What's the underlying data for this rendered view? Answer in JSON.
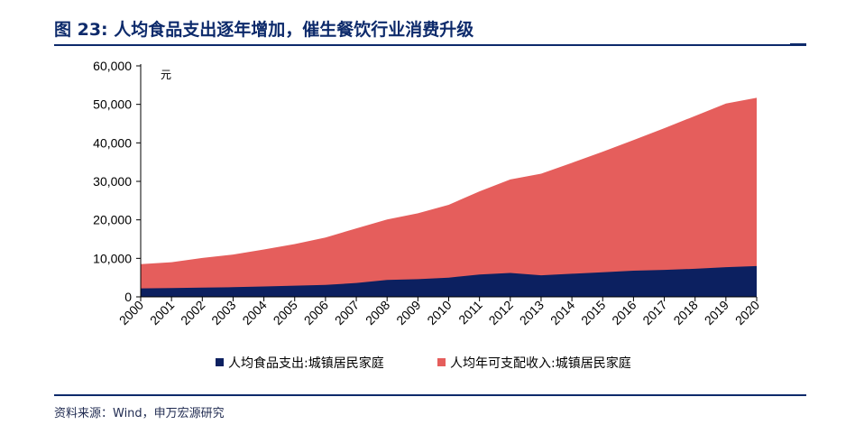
{
  "header": {
    "title": "图 23: 人均食品支出逐年增加，催生餐饮行业消费升级"
  },
  "footer": {
    "source": "资料来源：Wind，申万宏源研究"
  },
  "chart_data": {
    "type": "area",
    "stacked": false,
    "unit_label": "元",
    "categories": [
      "2000",
      "2001",
      "2002",
      "2003",
      "2004",
      "2005",
      "2006",
      "2007",
      "2008",
      "2009",
      "2010",
      "2011",
      "2012",
      "2013",
      "2014",
      "2015",
      "2016",
      "2017",
      "2018",
      "2019",
      "2020"
    ],
    "y_ticks": [
      "0",
      "10,000",
      "20,000",
      "30,000",
      "40,000",
      "50,000",
      "60,000"
    ],
    "ylim": [
      0,
      60000
    ],
    "grid": false,
    "legend_position": "bottom",
    "series": [
      {
        "name": "人均年可支配收入:城镇居民家庭",
        "color": "#e55e5c",
        "values": [
          8500,
          9000,
          10100,
          11000,
          12300,
          13700,
          15400,
          17800,
          20100,
          21700,
          23900,
          27400,
          30500,
          32000,
          34800,
          37700,
          40700,
          43800,
          47000,
          50200,
          51700
        ]
      },
      {
        "name": "人均食品支出:城镇居民家庭",
        "color": "#0c2060",
        "values": [
          2200,
          2300,
          2400,
          2500,
          2700,
          2900,
          3100,
          3600,
          4400,
          4600,
          5000,
          5800,
          6200,
          5600,
          6000,
          6400,
          6800,
          7000,
          7300,
          7700,
          8000
        ]
      }
    ]
  }
}
